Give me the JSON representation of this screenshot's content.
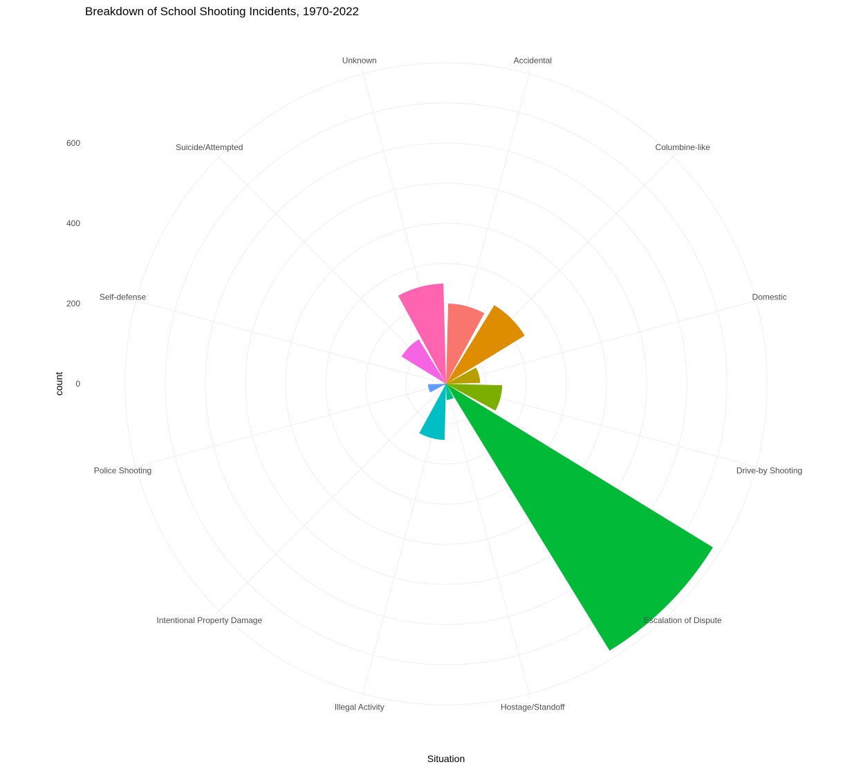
{
  "chart_data": {
    "type": "bar",
    "coord": "polar",
    "title": "Breakdown of School Shooting Incidents, 1970-2022",
    "xlabel": "Situation",
    "ylabel": "count",
    "yticks": [
      0,
      200,
      400,
      600
    ],
    "ylim": [
      0,
      810
    ],
    "grid": true,
    "legend": "none",
    "categories": [
      "Accidental",
      "Columbine-like",
      "Domestic",
      "Drive-by Shooting",
      "Escalation of Dispute",
      "Hostage/Standoff",
      "Illegal Activity",
      "Intentional Property Damage",
      "Police Shooting",
      "Self-defense",
      "Suicide/Attempted",
      "Unknown"
    ],
    "values": [
      200,
      230,
      85,
      140,
      780,
      40,
      140,
      5,
      45,
      5,
      130,
      250
    ],
    "colors": [
      "#F8766D",
      "#DE8C00",
      "#B79F00",
      "#7CAE00",
      "#00BA38",
      "#00C08B",
      "#00BFC4",
      "#00B4F0",
      "#619CFF",
      "#C77CFF",
      "#F564E3",
      "#FF64B0"
    ]
  }
}
